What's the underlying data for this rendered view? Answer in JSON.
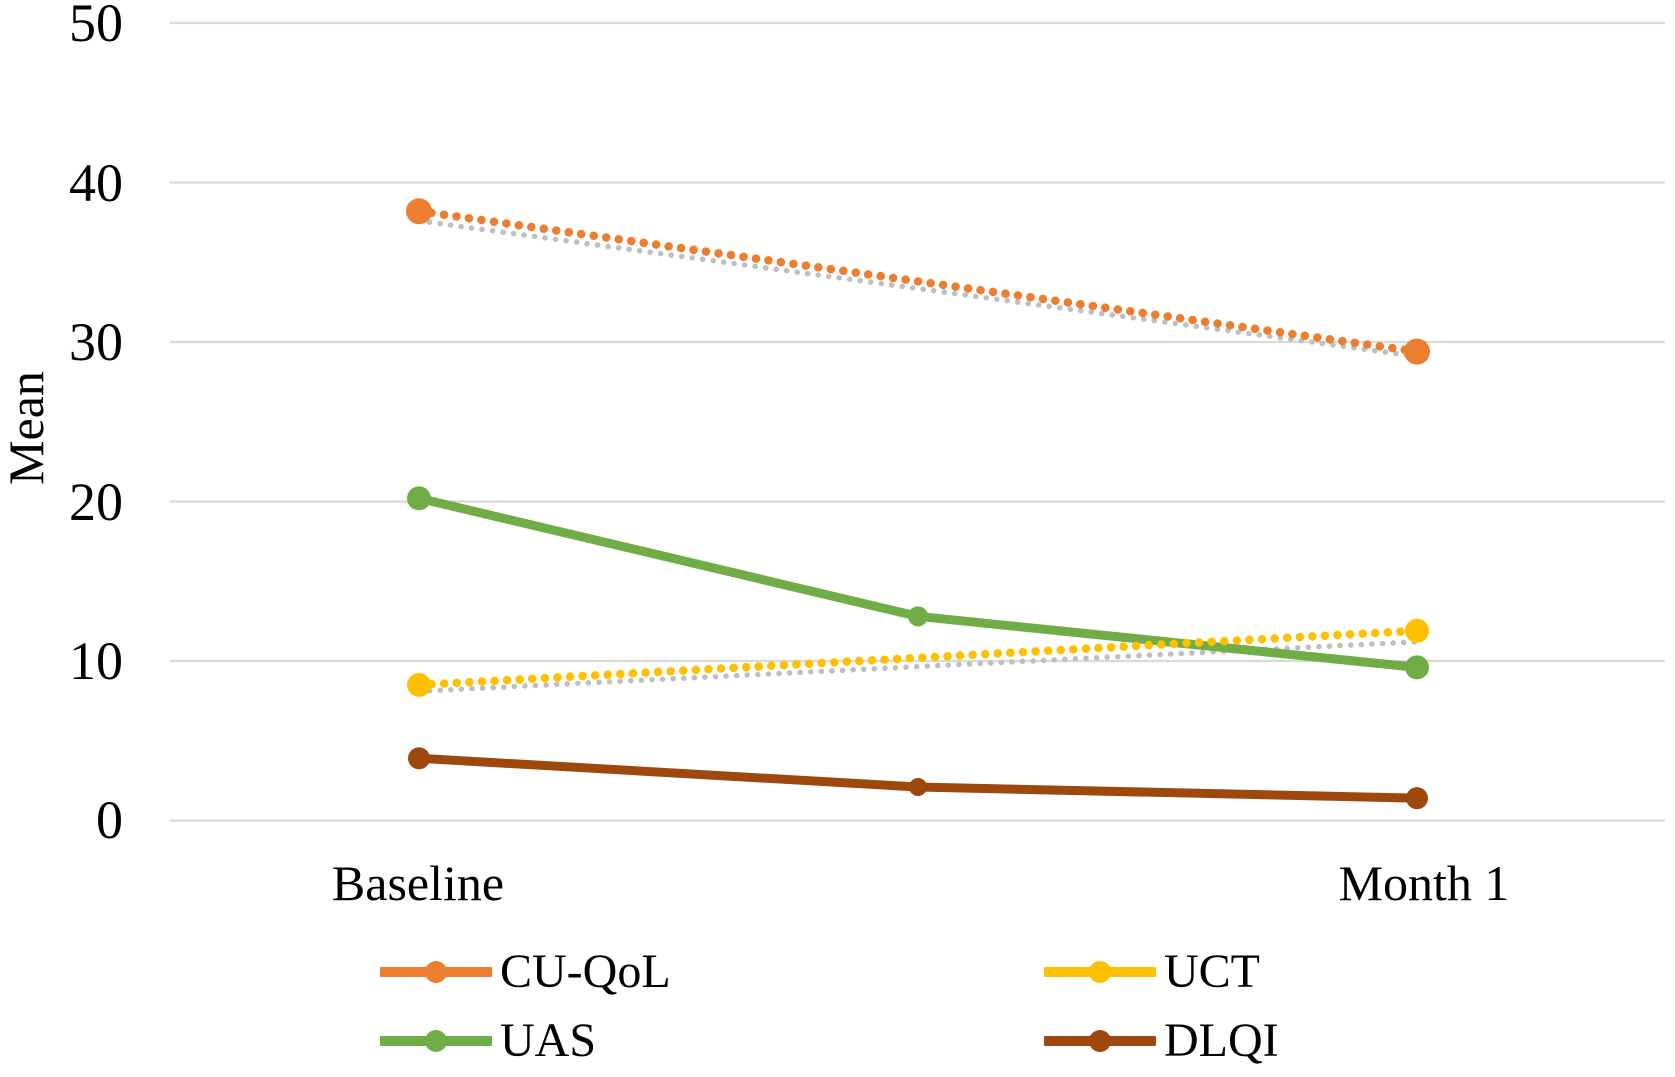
{
  "chart_data": {
    "type": "line",
    "title": "",
    "ylabel": "Mean",
    "xlabel": "",
    "ylim": [
      0,
      50
    ],
    "grid": "horizontal",
    "legend_position": "bottom",
    "yticks": [
      "50",
      "40",
      "30",
      "20",
      "10",
      "0"
    ],
    "ytick_values": [
      50,
      40,
      30,
      20,
      10,
      0
    ],
    "categories": [
      "Baseline",
      "",
      "Month 1"
    ],
    "xlabels": [
      "Baseline",
      "Month 1"
    ],
    "series": [
      {
        "name": "CU-QoL",
        "color": "#ED7D31",
        "style": "dotted",
        "marker_r": 13,
        "values": [
          38.2,
          null,
          29.4
        ]
      },
      {
        "name": "UAS",
        "color": "#70AD47",
        "style": "solid",
        "marker_r": 12,
        "values": [
          20.2,
          12.8,
          9.6
        ]
      },
      {
        "name": "UCT",
        "color": "#FFC000",
        "style": "dotted",
        "marker_r": 12,
        "values": [
          8.5,
          null,
          11.9
        ]
      },
      {
        "name": "DLQI",
        "color": "#9E480E",
        "style": "solid",
        "marker_r": 11,
        "values": [
          3.9,
          2.1,
          1.4
        ]
      }
    ],
    "trendlines": [
      {
        "for": "CU-QoL",
        "color": "#BFBFBF",
        "style": "dotted",
        "values": [
          37.6,
          null,
          29.1
        ]
      },
      {
        "for": "UCT",
        "color": "#BFBFBF",
        "style": "dotted",
        "values": [
          8.1,
          null,
          11.2
        ]
      }
    ],
    "gridline_color": "#D9D9D9",
    "text_color": "#000000"
  }
}
